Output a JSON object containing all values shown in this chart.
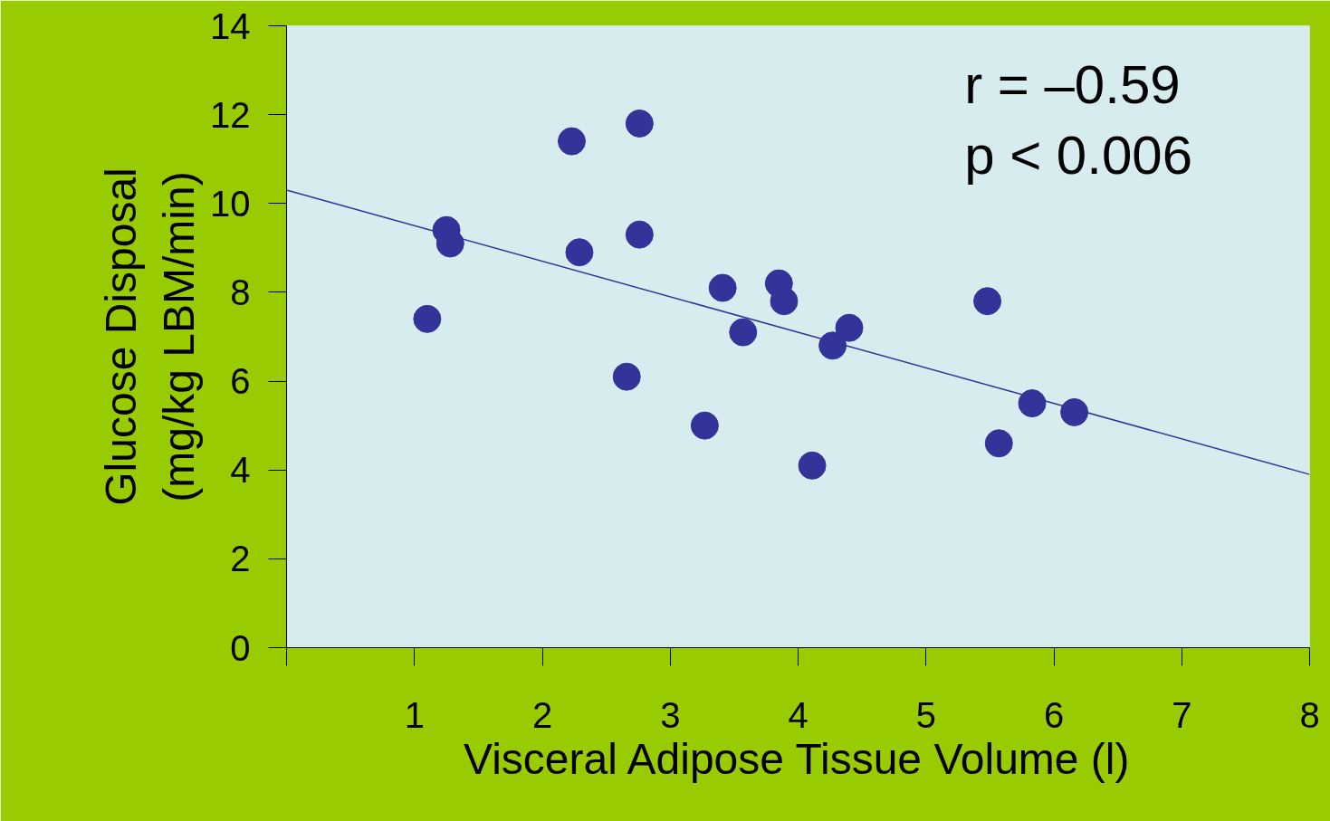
{
  "chart_data": {
    "type": "scatter",
    "xlabel": "Visceral Adipose Tissue Volume (l)",
    "ylabel": "Glucose Disposal\n(mg/kg LBM/min)",
    "xlim": [
      0,
      8
    ],
    "ylim": [
      0,
      14
    ],
    "xticks": [
      {
        "value": 0,
        "label": null
      },
      1,
      2,
      3,
      4,
      5,
      6,
      7,
      8
    ],
    "yticks": [
      0,
      2,
      4,
      6,
      8,
      10,
      12,
      14
    ],
    "grid": false,
    "annotations": [
      "r = –0.59",
      "p < 0.006"
    ],
    "series": [
      {
        "marker": "circle",
        "color": "#333399",
        "x": [
          1.1,
          1.25,
          1.28,
          2.23,
          2.29,
          2.76,
          2.76,
          2.66,
          3.27,
          3.41,
          3.57,
          3.85,
          3.89,
          4.11,
          4.27,
          4.4,
          5.48,
          5.57,
          5.83,
          6.16
        ],
        "values": [
          7.4,
          9.4,
          9.1,
          11.4,
          8.9,
          11.8,
          9.3,
          6.1,
          5.0,
          8.1,
          7.1,
          8.2,
          7.8,
          4.1,
          6.8,
          7.2,
          7.8,
          4.6,
          5.5,
          5.3
        ]
      },
      {
        "type": "line",
        "marker": "none",
        "color": "#333399",
        "x": [
          0,
          8
        ],
        "values": [
          10.3,
          3.9
        ]
      }
    ]
  }
}
